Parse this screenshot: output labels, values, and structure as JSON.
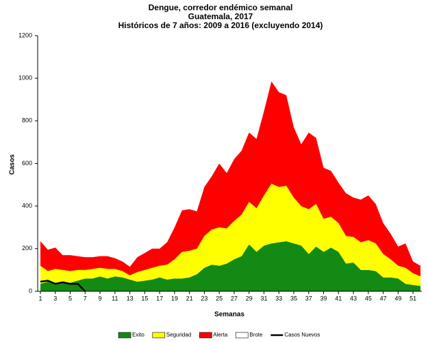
{
  "chart_data": {
    "type": "stacked_area",
    "title": "Dengue, corredor endémico semanal",
    "subtitle": [
      "Guatemala, 2017",
      "Históricos de 7 años: 2009 a 2016 (excluyendo 2014)"
    ],
    "x_label": "Semanas",
    "y_label": "Casos",
    "x": [
      1,
      2,
      3,
      4,
      5,
      6,
      7,
      8,
      9,
      10,
      11,
      12,
      13,
      14,
      15,
      16,
      17,
      18,
      19,
      20,
      21,
      22,
      23,
      24,
      25,
      26,
      27,
      28,
      29,
      30,
      31,
      32,
      33,
      34,
      35,
      36,
      37,
      38,
      39,
      40,
      41,
      42,
      43,
      44,
      45,
      46,
      47,
      48,
      49,
      50,
      51,
      52
    ],
    "xlim": [
      1,
      52
    ],
    "xticks": [
      1,
      3,
      5,
      7,
      9,
      11,
      13,
      15,
      17,
      19,
      21,
      23,
      25,
      27,
      29,
      31,
      33,
      35,
      37,
      39,
      41,
      43,
      45,
      47,
      49,
      51
    ],
    "ylim": [
      0,
      1200
    ],
    "yticks": [
      0,
      200,
      400,
      600,
      800,
      1000,
      1200
    ],
    "legend": "bottom",
    "series": [
      {
        "name": "Exito",
        "color": "#138a13",
        "stacked": true,
        "values": [
          35,
          45,
          40,
          45,
          40,
          50,
          60,
          60,
          70,
          60,
          70,
          65,
          55,
          45,
          50,
          55,
          65,
          55,
          60,
          60,
          65,
          80,
          110,
          125,
          120,
          130,
          150,
          165,
          220,
          185,
          215,
          225,
          230,
          235,
          225,
          215,
          175,
          210,
          185,
          205,
          185,
          130,
          135,
          100,
          100,
          95,
          65,
          65,
          60,
          35,
          30,
          25
        ]
      },
      {
        "name": "Seguridad",
        "color": "#ffff00",
        "stacked": true,
        "values": [
          85,
          50,
          65,
          55,
          55,
          50,
          40,
          45,
          40,
          45,
          35,
          30,
          20,
          45,
          50,
          55,
          55,
          70,
          90,
          125,
          125,
          120,
          150,
          165,
          180,
          165,
          180,
          195,
          200,
          205,
          235,
          280,
          260,
          260,
          215,
          185,
          210,
          200,
          155,
          145,
          135,
          130,
          120,
          130,
          140,
          130,
          110,
          85,
          60,
          75,
          55,
          45
        ]
      },
      {
        "name": "Alerta",
        "color": "#ff0000",
        "stacked": true,
        "values": [
          115,
          100,
          100,
          70,
          75,
          65,
          60,
          55,
          55,
          60,
          50,
          45,
          40,
          70,
          80,
          90,
          80,
          105,
          150,
          195,
          195,
          175,
          230,
          250,
          300,
          260,
          290,
          300,
          325,
          325,
          395,
          480,
          445,
          425,
          330,
          290,
          360,
          310,
          240,
          215,
          190,
          200,
          185,
          200,
          210,
          185,
          145,
          120,
          90,
          115,
          55,
          50
        ]
      },
      {
        "name": "Brote",
        "color": "#ffffff",
        "stacked": true,
        "values": [
          null,
          null,
          null,
          null,
          null,
          null,
          null,
          null,
          null,
          null,
          null,
          null,
          null,
          null,
          null,
          null,
          null,
          null,
          null,
          null,
          null,
          null,
          null,
          null,
          null,
          null,
          null,
          null,
          null,
          null,
          null,
          null,
          null,
          null,
          null,
          null,
          null,
          null,
          null,
          null,
          null,
          null,
          null,
          null,
          null,
          null,
          null,
          null,
          null,
          null,
          null,
          null
        ]
      },
      {
        "name": "Casos Nuevos",
        "color": "#000000",
        "stacked": false,
        "values": [
          45,
          50,
          35,
          42,
          35,
          35,
          0,
          null,
          null,
          null,
          null,
          null,
          null,
          null,
          null,
          null,
          null,
          null,
          null,
          null,
          null,
          null,
          null,
          null,
          null,
          null,
          null,
          null,
          null,
          null,
          null,
          null,
          null,
          null,
          null,
          null,
          null,
          null,
          null,
          null,
          null,
          null,
          null,
          null,
          null,
          null,
          null,
          null,
          null,
          null,
          null,
          null
        ]
      }
    ]
  }
}
